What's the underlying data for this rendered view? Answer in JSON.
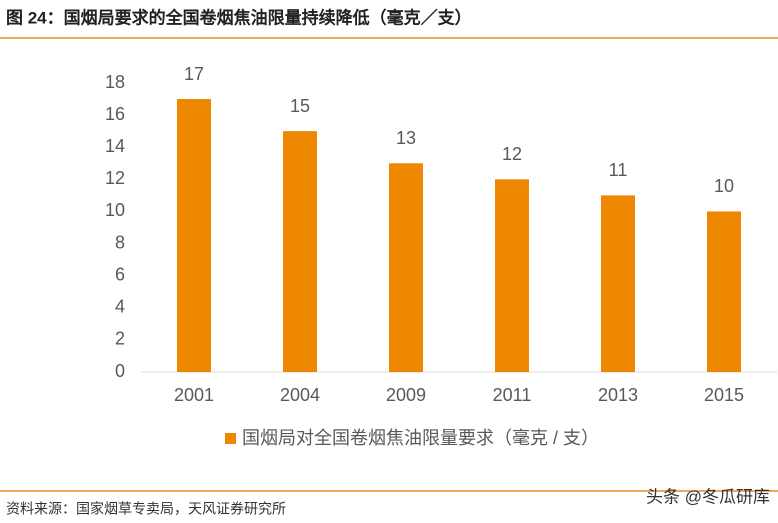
{
  "header": {
    "title": "图 24：国烟局要求的全国卷烟焦油限量持续降低（毫克／支）"
  },
  "chart_data": {
    "type": "bar",
    "categories": [
      "2001",
      "2004",
      "2009",
      "2011",
      "2013",
      "2015"
    ],
    "series": [
      {
        "name": "国烟局对全国卷烟焦油限量要求（毫克 / 支）",
        "color": "#ee8800",
        "values": [
          17,
          15,
          13,
          12,
          11,
          10
        ]
      }
    ],
    "ylim": [
      0,
      18
    ],
    "yticks": [
      0,
      2,
      4,
      6,
      8,
      10,
      12,
      14,
      16,
      18
    ],
    "grid": false,
    "legend": "bottom"
  },
  "footer": {
    "source": "资料来源：国家烟草专卖局，天风证券研究所",
    "watermark": "头条 @冬瓜研库"
  }
}
